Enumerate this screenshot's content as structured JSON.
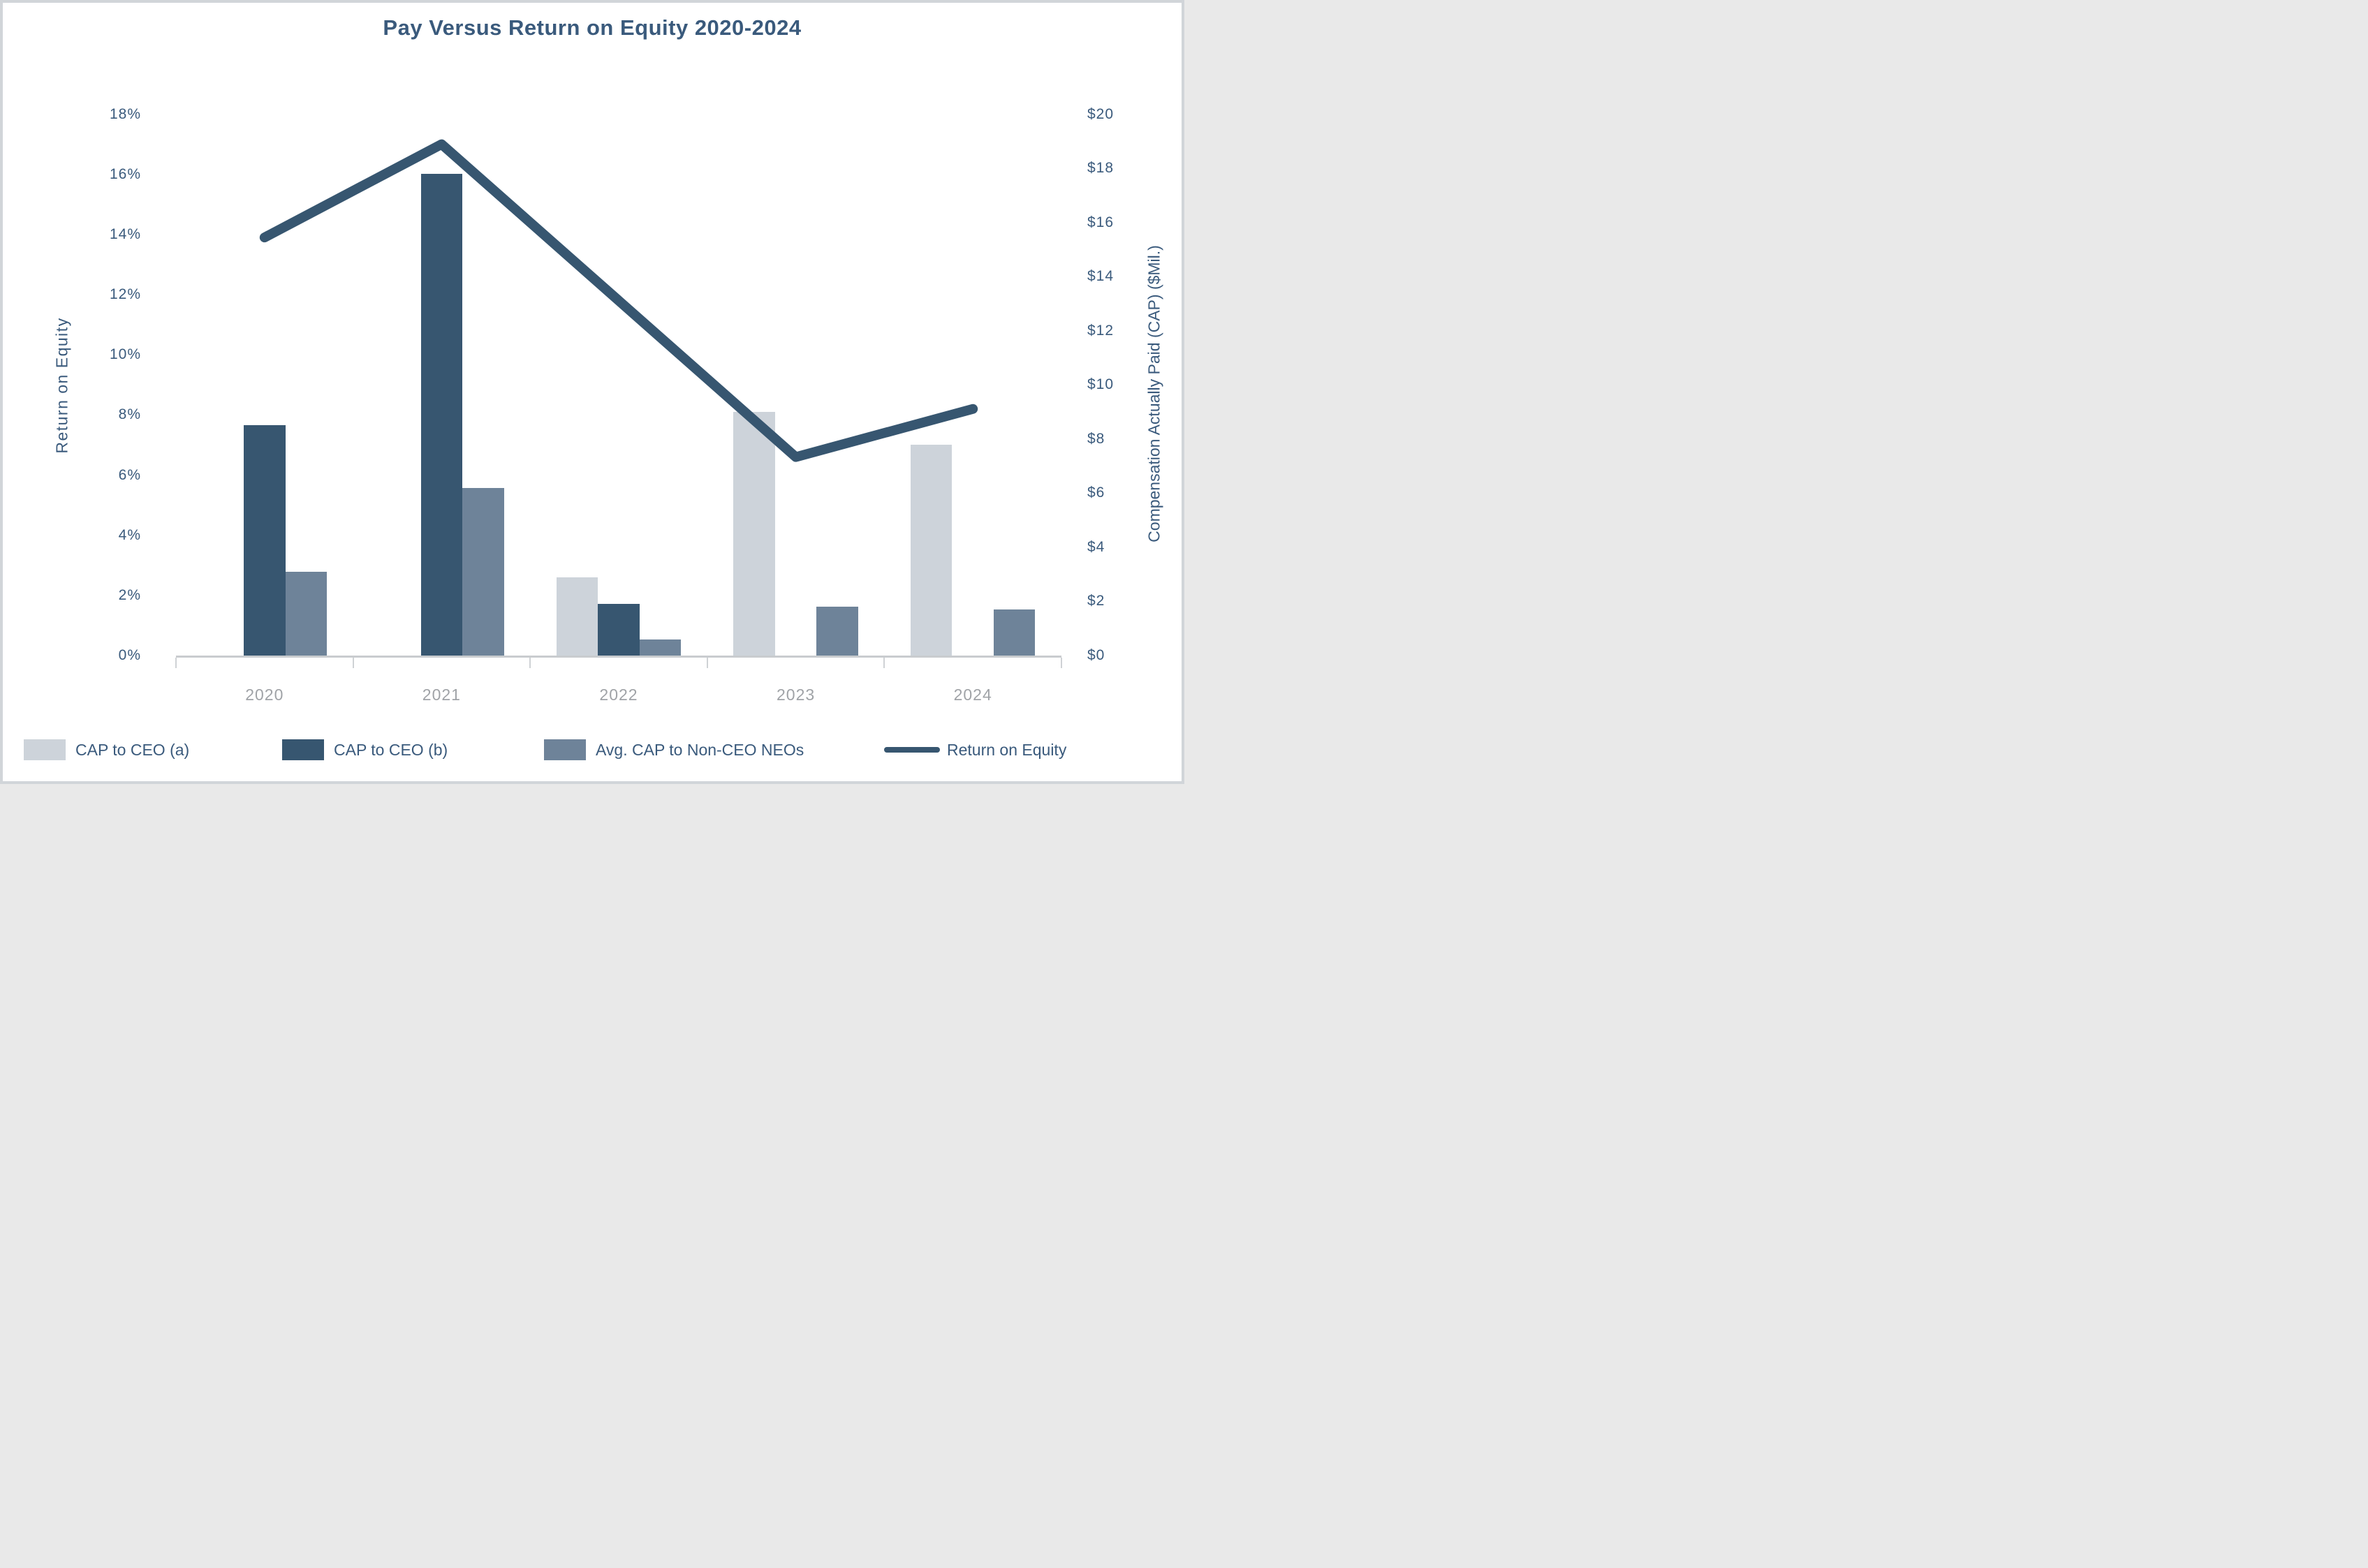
{
  "title": "Pay Versus Return on Equity 2020-2024",
  "colors": {
    "accent_text": "#3a5a7c",
    "bar_light": "#cdd3da",
    "bar_dark": "#375670",
    "bar_medium": "#6e8399",
    "line": "#375670",
    "axis_line": "#c9cccf",
    "year_text": "#a0a3a7"
  },
  "left_axis": {
    "label": "Return on Equity",
    "ticks": [
      "0%",
      "2%",
      "4%",
      "6%",
      "8%",
      "10%",
      "12%",
      "14%",
      "16%",
      "18%"
    ],
    "min": 0,
    "max": 18,
    "step": 2
  },
  "right_axis": {
    "label": "Compensation Actually Paid (CAP) ($Mil.)",
    "ticks": [
      "$0",
      "$2",
      "$4",
      "$6",
      "$8",
      "$10",
      "$12",
      "$14",
      "$16",
      "$18",
      "$20"
    ],
    "min": 0,
    "max": 20,
    "step": 2
  },
  "x_axis": {
    "years": [
      "2020",
      "2021",
      "2022",
      "2023",
      "2024"
    ]
  },
  "legend": {
    "items": [
      "CAP to CEO (a)",
      "CAP to CEO (b)",
      "Avg. CAP to Non-CEO NEOs",
      "Return on Equity"
    ]
  },
  "chart_data": {
    "type": "combo-bar-line",
    "categories": [
      "2020",
      "2021",
      "2022",
      "2023",
      "2024"
    ],
    "series": [
      {
        "name": "CAP to CEO (a)",
        "type": "bar",
        "axis": "right",
        "unit": "$Mil",
        "color": "#cdd3da",
        "values": [
          null,
          null,
          2.9,
          9.0,
          7.8
        ]
      },
      {
        "name": "CAP to CEO (b)",
        "type": "bar",
        "axis": "right",
        "unit": "$Mil",
        "color": "#375670",
        "values": [
          8.5,
          17.8,
          1.9,
          null,
          null
        ]
      },
      {
        "name": "Avg. CAP to Non-CEO NEOs",
        "type": "bar",
        "axis": "right",
        "unit": "$Mil",
        "color": "#6e8399",
        "values": [
          3.1,
          6.2,
          0.6,
          1.8,
          1.7
        ]
      },
      {
        "name": "Return on Equity",
        "type": "line",
        "axis": "left",
        "unit": "%",
        "color": "#375670",
        "values": [
          13.9,
          17.0,
          11.8,
          6.6,
          8.2
        ]
      }
    ],
    "title": "Pay Versus Return on Equity 2020-2024",
    "left_ylabel": "Return on Equity",
    "right_ylabel": "Compensation Actually Paid (CAP) ($Mil.)",
    "left_ylim": [
      0,
      18
    ],
    "right_ylim": [
      0,
      20
    ],
    "grid": false,
    "legend_position": "bottom"
  }
}
